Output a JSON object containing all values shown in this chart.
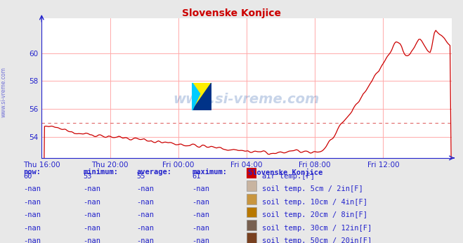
{
  "title": "Slovenske Konjice",
  "title_color": "#cc0000",
  "bg_color": "#e8e8e8",
  "plot_bg_color": "#ffffff",
  "grid_color": "#ffaaaa",
  "axis_color": "#2222cc",
  "watermark": "www.si-vreme.com",
  "ylim": [
    52.5,
    62.5
  ],
  "yticks": [
    54,
    56,
    58,
    60
  ],
  "xlim": [
    0,
    288
  ],
  "xtick_positions": [
    0,
    48,
    96,
    144,
    192,
    240
  ],
  "xtick_labels": [
    "Thu 16:00",
    "Thu 20:00",
    "Fri 00:00",
    "Fri 04:00",
    "Fri 08:00",
    "Fri 12:00"
  ],
  "line_color": "#cc0000",
  "average_line_y": 55.0,
  "now_val": "60",
  "min_val": "53",
  "avg_val": "55",
  "max_val": "61",
  "legend_entries": [
    {
      "label": "air temp.[F]",
      "color": "#cc0000"
    },
    {
      "label": "soil temp. 5cm / 2in[F]",
      "color": "#c8b4a0"
    },
    {
      "label": "soil temp. 10cm / 4in[F]",
      "color": "#c89640"
    },
    {
      "label": "soil temp. 20cm / 8in[F]",
      "color": "#b87800"
    },
    {
      "label": "soil temp. 30cm / 12in[F]",
      "color": "#786050"
    },
    {
      "label": "soil temp. 50cm / 20in[F]",
      "color": "#784020"
    }
  ],
  "watermark_color": "#2255aa",
  "watermark_alpha": 0.25
}
